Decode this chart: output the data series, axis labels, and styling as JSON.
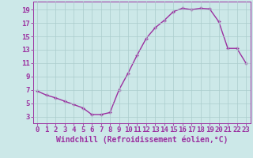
{
  "x": [
    0,
    1,
    2,
    3,
    4,
    5,
    6,
    7,
    8,
    9,
    10,
    11,
    12,
    13,
    14,
    15,
    16,
    17,
    18,
    19,
    20,
    21,
    22,
    23
  ],
  "y": [
    6.8,
    6.2,
    5.8,
    5.3,
    4.8,
    4.3,
    3.3,
    3.3,
    3.6,
    7.0,
    9.5,
    12.2,
    14.7,
    16.3,
    17.4,
    18.7,
    19.2,
    19.0,
    19.2,
    19.1,
    17.2,
    13.2,
    13.2,
    11.0
  ],
  "line_color": "#9b30a0",
  "marker": "+",
  "bg_color": "#cce8e8",
  "grid_color": "#aacccc",
  "xlabel": "Windchill (Refroidissement éolien,°C)",
  "xlabel_color": "#9b30a0",
  "tick_color": "#9b30a0",
  "spine_color": "#9b30a0",
  "xlim": [
    -0.5,
    23.5
  ],
  "ylim": [
    2.0,
    20.2
  ],
  "yticks": [
    3,
    5,
    7,
    9,
    11,
    13,
    15,
    17,
    19
  ],
  "xticks": [
    0,
    1,
    2,
    3,
    4,
    5,
    6,
    7,
    8,
    9,
    10,
    11,
    12,
    13,
    14,
    15,
    16,
    17,
    18,
    19,
    20,
    21,
    22,
    23
  ],
  "font_size": 6.5,
  "xlabel_fontsize": 7.0,
  "linewidth": 1.0,
  "markersize": 3.5,
  "markeredgewidth": 1.0
}
